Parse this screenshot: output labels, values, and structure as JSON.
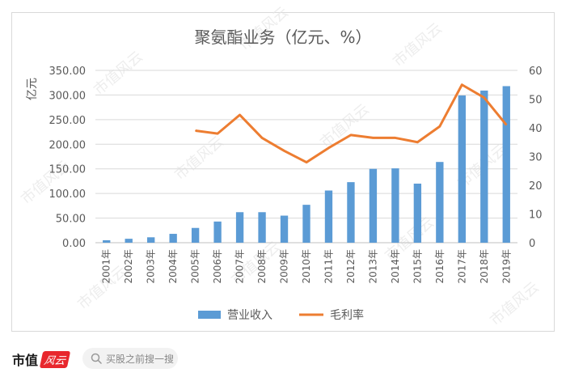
{
  "chart_data": {
    "type": "bar+line",
    "title": "聚氨酯业务（亿元、%）",
    "ylabel": "亿元",
    "y2label": "",
    "categories": [
      "2001年",
      "2002年",
      "2003年",
      "2004年",
      "2005年",
      "2006年",
      "2007年",
      "2008年",
      "2009年",
      "2010年",
      "2011年",
      "2012年",
      "2013年",
      "2014年",
      "2015年",
      "2016年",
      "2017年",
      "2018年",
      "2019年"
    ],
    "ylim": [
      0,
      350
    ],
    "y2lim": [
      0,
      60
    ],
    "yticks": [
      "0.00",
      "50.00",
      "100.00",
      "150.00",
      "200.00",
      "250.00",
      "300.00",
      "350.00"
    ],
    "y2ticks": [
      "0",
      "10",
      "20",
      "30",
      "40",
      "50",
      "60"
    ],
    "grid": true,
    "legend_position": "bottom",
    "series": [
      {
        "name": "营业收入",
        "type": "bar",
        "axis": "left",
        "color": "#5b9bd5",
        "values": [
          5,
          8,
          11,
          18,
          30,
          43,
          62,
          62,
          55,
          77,
          106,
          123,
          150,
          151,
          120,
          164,
          299,
          309,
          318
        ]
      },
      {
        "name": "毛利率",
        "type": "line",
        "axis": "right",
        "color": "#ed7d31",
        "values": [
          null,
          null,
          null,
          null,
          39,
          38,
          44.5,
          36.5,
          32,
          28,
          33,
          37.5,
          36.5,
          36.5,
          35,
          40.5,
          55,
          50.5,
          41
        ]
      }
    ]
  },
  "watermark": "市值风云",
  "footer": {
    "brand_text": "市值",
    "brand_script": "风云",
    "search_placeholder": "买股之前搜一搜"
  }
}
